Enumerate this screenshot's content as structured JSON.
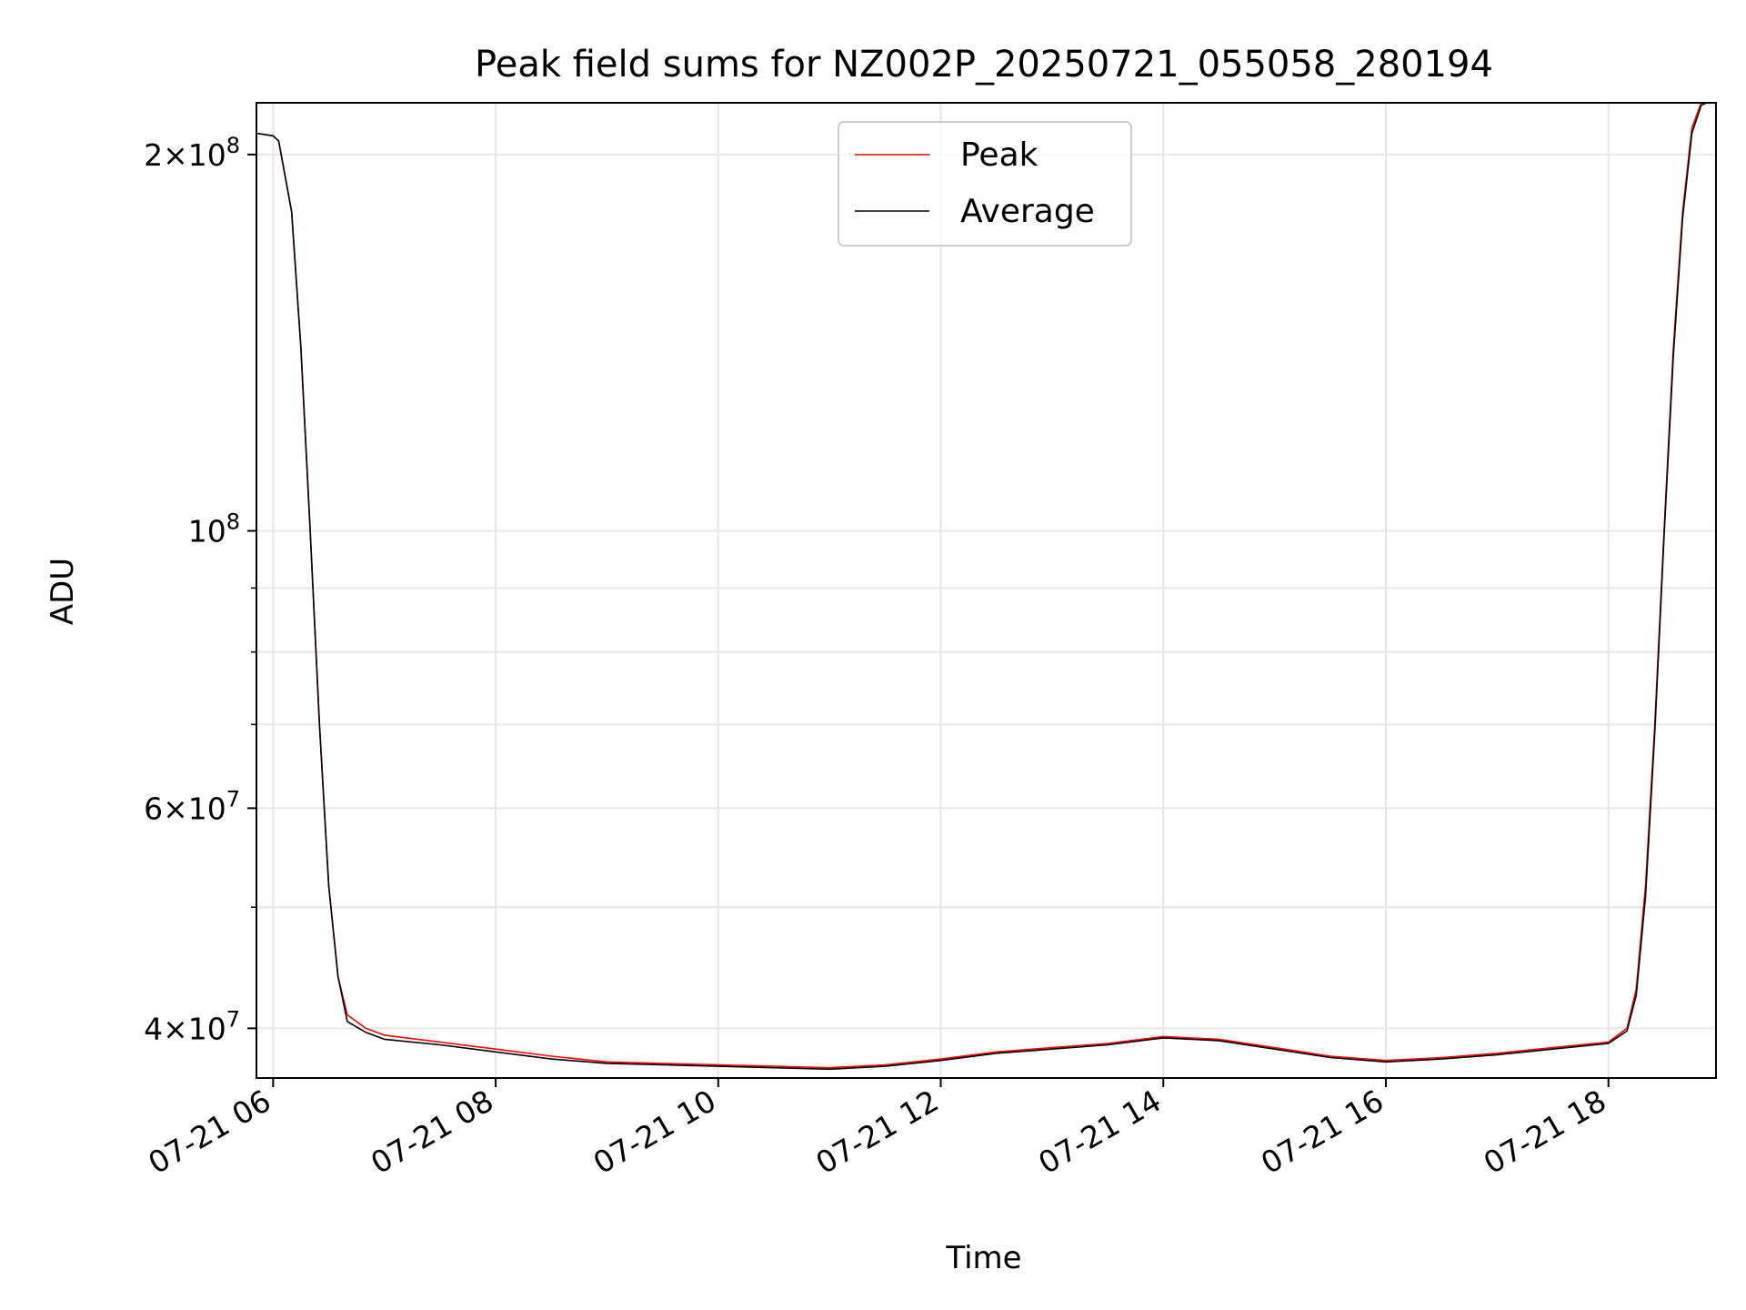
{
  "chart_data": {
    "type": "line",
    "title": "Peak field sums for NZ002P_20250721_055058_280194",
    "xlabel": "Time",
    "ylabel": "ADU",
    "yscale": "log",
    "xlim": [
      "2025-07-21T05:51",
      "2025-07-21T18:58"
    ],
    "ylim": [
      36500000,
      220000000
    ],
    "grid": true,
    "legend_position": "upper center",
    "xticks": [
      {
        "value": "2025-07-21T06:00",
        "label": "07-21 06"
      },
      {
        "value": "2025-07-21T08:00",
        "label": "07-21 08"
      },
      {
        "value": "2025-07-21T10:00",
        "label": "07-21 10"
      },
      {
        "value": "2025-07-21T12:00",
        "label": "07-21 12"
      },
      {
        "value": "2025-07-21T14:00",
        "label": "07-21 14"
      },
      {
        "value": "2025-07-21T16:00",
        "label": "07-21 16"
      },
      {
        "value": "2025-07-21T18:00",
        "label": "07-21 18"
      }
    ],
    "yticks_major": [
      {
        "value": 40000000,
        "base": "4",
        "exp": "7"
      },
      {
        "value": 60000000,
        "base": "6",
        "exp": "7"
      },
      {
        "value": 100000000,
        "base": "",
        "exp": "8"
      },
      {
        "value": 200000000,
        "base": "2",
        "exp": "8"
      }
    ],
    "yticks_minor": [
      50000000,
      70000000,
      80000000,
      90000000
    ],
    "x": [
      "2025-07-21T05:51",
      "2025-07-21T06:00",
      "2025-07-21T06:03",
      "2025-07-21T06:10",
      "2025-07-21T06:15",
      "2025-07-21T06:20",
      "2025-07-21T06:25",
      "2025-07-21T06:30",
      "2025-07-21T06:35",
      "2025-07-21T06:40",
      "2025-07-21T06:50",
      "2025-07-21T07:00",
      "2025-07-21T07:30",
      "2025-07-21T08:00",
      "2025-07-21T08:30",
      "2025-07-21T09:00",
      "2025-07-21T09:30",
      "2025-07-21T10:00",
      "2025-07-21T10:30",
      "2025-07-21T11:00",
      "2025-07-21T11:30",
      "2025-07-21T12:00",
      "2025-07-21T12:30",
      "2025-07-21T13:00",
      "2025-07-21T13:30",
      "2025-07-21T14:00",
      "2025-07-21T14:30",
      "2025-07-21T15:00",
      "2025-07-21T15:30",
      "2025-07-21T16:00",
      "2025-07-21T16:30",
      "2025-07-21T17:00",
      "2025-07-21T17:30",
      "2025-07-21T18:00",
      "2025-07-21T18:10",
      "2025-07-21T18:15",
      "2025-07-21T18:20",
      "2025-07-21T18:25",
      "2025-07-21T18:30",
      "2025-07-21T18:35",
      "2025-07-21T18:40",
      "2025-07-21T18:45",
      "2025-07-21T18:50",
      "2025-07-21T18:53",
      "2025-07-21T18:58"
    ],
    "series": [
      {
        "name": "Peak",
        "color": "#ff0000",
        "values": [
          208000000,
          207000000,
          205000000,
          180000000,
          140000000,
          100000000,
          70000000,
          52000000,
          44000000,
          41000000,
          40000000,
          39500000,
          39000000,
          38500000,
          38000000,
          37600000,
          37500000,
          37400000,
          37300000,
          37200000,
          37400000,
          37800000,
          38300000,
          38600000,
          38900000,
          39400000,
          39200000,
          38600000,
          38000000,
          37700000,
          37900000,
          38200000,
          38600000,
          39000000,
          40000000,
          43000000,
          52000000,
          70000000,
          100000000,
          140000000,
          180000000,
          210000000,
          220000000,
          222000000,
          222000000
        ]
      },
      {
        "name": "Average",
        "color": "#000000",
        "values": [
          208000000,
          207000000,
          205000000,
          180000000,
          140000000,
          100000000,
          70000000,
          52000000,
          44000000,
          40500000,
          39700000,
          39200000,
          38800000,
          38300000,
          37800000,
          37500000,
          37400000,
          37300000,
          37200000,
          37100000,
          37300000,
          37700000,
          38200000,
          38500000,
          38800000,
          39300000,
          39100000,
          38500000,
          37900000,
          37600000,
          37800000,
          38100000,
          38500000,
          38900000,
          39800000,
          42500000,
          51000000,
          69000000,
          99000000,
          138000000,
          178000000,
          208000000,
          219000000,
          222000000,
          222000000
        ]
      }
    ]
  }
}
